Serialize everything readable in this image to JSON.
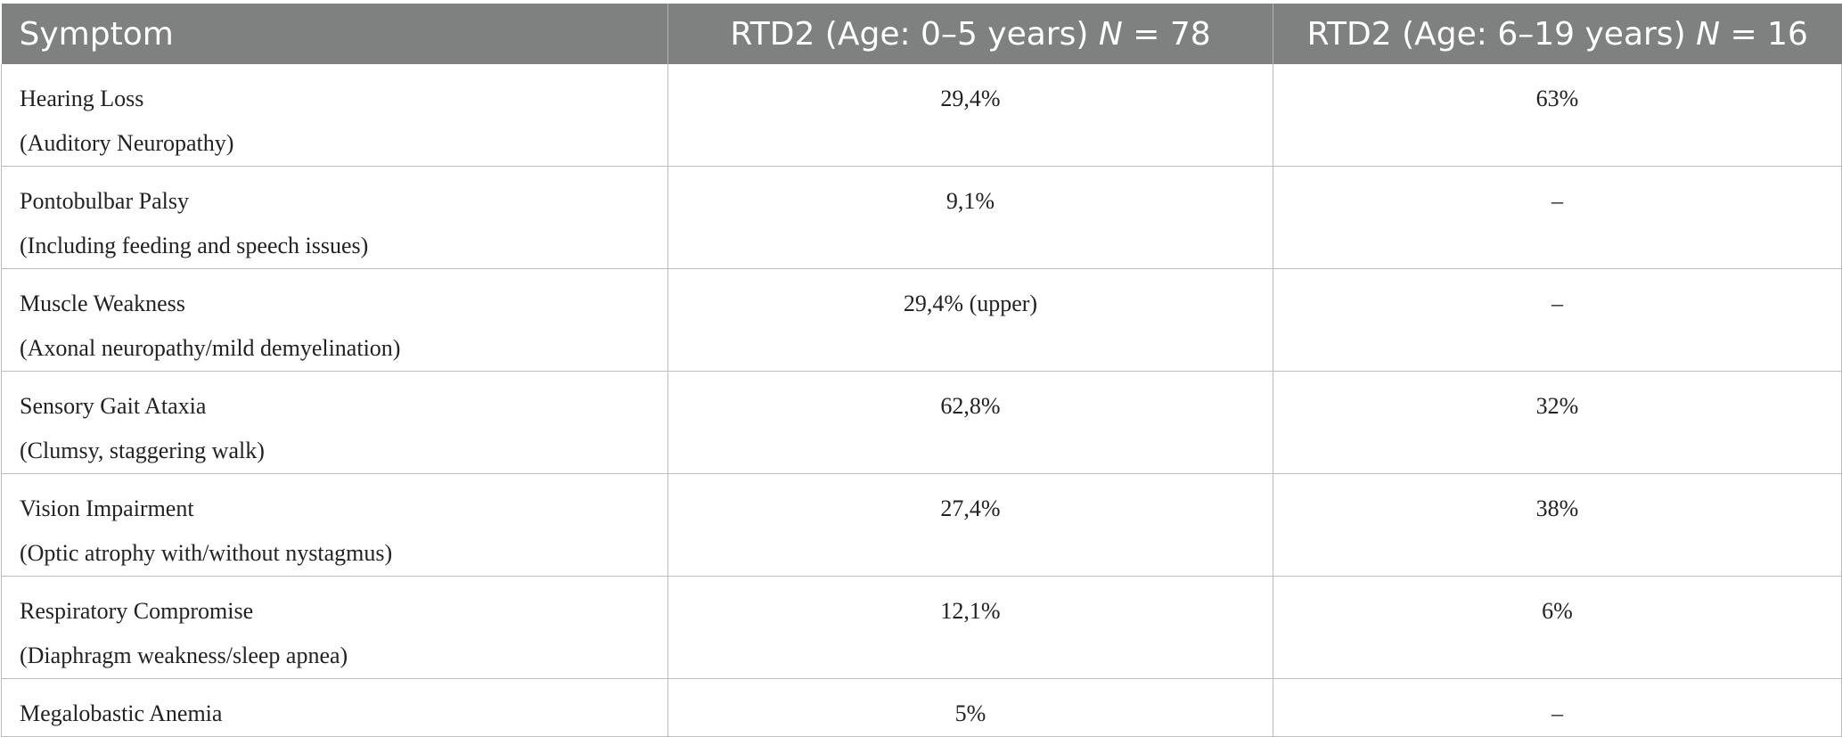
{
  "table": {
    "headers": {
      "symptom": "Symptom",
      "col1_prefix": "RTD2 (Age: 0–5 years) ",
      "col1_n_label": "N",
      "col1_n_value": " = 78",
      "col2_prefix": "RTD2 (Age: 6–19 years) ",
      "col2_n_label": "N",
      "col2_n_value": " = 16"
    },
    "rows": [
      {
        "name": "Hearing Loss",
        "detail": "(Auditory Neuropathy)",
        "age_0_5": "29,4%",
        "age_6_19": "63%"
      },
      {
        "name": "Pontobulbar Palsy",
        "detail": "(Including feeding and speech issues)",
        "age_0_5": "9,1%",
        "age_6_19": "–"
      },
      {
        "name": "Muscle Weakness",
        "detail": "(Axonal neuropathy/mild demyelination)",
        "age_0_5": "29,4% (upper)",
        "age_6_19": "–"
      },
      {
        "name": "Sensory Gait Ataxia",
        "detail": "(Clumsy, staggering walk)",
        "age_0_5": "62,8%",
        "age_6_19": "32%"
      },
      {
        "name": "Vision Impairment",
        "detail": "(Optic atrophy with/without nystagmus)",
        "age_0_5": "27,4%",
        "age_6_19": "38%"
      },
      {
        "name": "Respiratory Compromise",
        "detail": "(Diaphragm weakness/sleep apnea)",
        "age_0_5": "12,1%",
        "age_6_19": "6%"
      },
      {
        "name": "Megalobastic Anemia",
        "detail": "",
        "age_0_5": "5%",
        "age_6_19": "–"
      }
    ]
  }
}
